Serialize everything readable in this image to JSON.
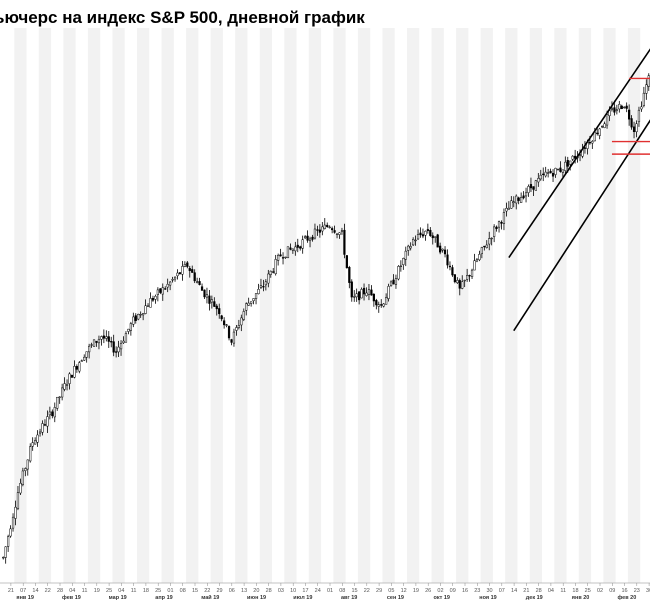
{
  "chart_data": {
    "type": "candlestick",
    "title": "ьючерс на индекс S&P 500, дневной график",
    "xlabel": "",
    "ylabel": "",
    "grid": true,
    "day_ticks": [
      "21",
      "07",
      "14",
      "22",
      "28",
      "04",
      "11",
      "19",
      "25",
      "04",
      "11",
      "18",
      "25",
      "01",
      "08",
      "15",
      "22",
      "29",
      "06",
      "13",
      "20",
      "28",
      "03",
      "10",
      "17",
      "24",
      "01",
      "08",
      "15",
      "22",
      "29",
      "05",
      "12",
      "19",
      "26",
      "02",
      "09",
      "16",
      "23",
      "30",
      "07",
      "14",
      "21",
      "28",
      "04",
      "11",
      "18",
      "25",
      "02",
      "09",
      "16",
      "23",
      "30",
      "06",
      "13",
      "20",
      "27",
      "03",
      "10",
      "17"
    ],
    "month_ticks": [
      "янв 19",
      "фев 19",
      "мар 19",
      "апр 19",
      "май 19",
      "июн 19",
      "июл 19",
      "авг 19",
      "сен 19",
      "окт 19",
      "ноя 19",
      "дек 19",
      "янв 20",
      "фев 20"
    ],
    "price_knots": [
      {
        "t": 0,
        "p": 2350
      },
      {
        "t": 6,
        "p": 2480
      },
      {
        "t": 12,
        "p": 2580
      },
      {
        "t": 20,
        "p": 2640
      },
      {
        "t": 26,
        "p": 2700
      },
      {
        "t": 33,
        "p": 2755
      },
      {
        "t": 40,
        "p": 2790
      },
      {
        "t": 46,
        "p": 2760
      },
      {
        "t": 53,
        "p": 2820
      },
      {
        "t": 60,
        "p": 2860
      },
      {
        "t": 67,
        "p": 2890
      },
      {
        "t": 75,
        "p": 2930
      },
      {
        "t": 81,
        "p": 2880
      },
      {
        "t": 88,
        "p": 2840
      },
      {
        "t": 93,
        "p": 2780
      },
      {
        "t": 99,
        "p": 2850
      },
      {
        "t": 106,
        "p": 2890
      },
      {
        "t": 113,
        "p": 2950
      },
      {
        "t": 119,
        "p": 2965
      },
      {
        "t": 126,
        "p": 2990
      },
      {
        "t": 133,
        "p": 3010
      },
      {
        "t": 138,
        "p": 2990
      },
      {
        "t": 142,
        "p": 2860
      },
      {
        "t": 148,
        "p": 2880
      },
      {
        "t": 154,
        "p": 2850
      },
      {
        "t": 160,
        "p": 2910
      },
      {
        "t": 167,
        "p": 2980
      },
      {
        "t": 173,
        "p": 3000
      },
      {
        "t": 180,
        "p": 2950
      },
      {
        "t": 186,
        "p": 2880
      },
      {
        "t": 193,
        "p": 2940
      },
      {
        "t": 200,
        "p": 3000
      },
      {
        "t": 207,
        "p": 3050
      },
      {
        "t": 214,
        "p": 3080
      },
      {
        "t": 221,
        "p": 3110
      },
      {
        "t": 227,
        "p": 3120
      },
      {
        "t": 234,
        "p": 3150
      },
      {
        "t": 241,
        "p": 3190
      },
      {
        "t": 248,
        "p": 3235
      },
      {
        "t": 253,
        "p": 3250
      },
      {
        "t": 257,
        "p": 3200
      },
      {
        "t": 261,
        "p": 3270
      },
      {
        "t": 263,
        "p": 3300
      }
    ],
    "ylim": [
      2300,
      3400
    ],
    "channel": {
      "upper": [
        {
          "t": 206,
          "p": 2945
        },
        {
          "t": 263,
          "p": 3365
        }
      ],
      "lower": [
        {
          "t": 208,
          "p": 2800
        },
        {
          "t": 263,
          "p": 3225
        }
      ]
    },
    "horizontal_levels": [
      {
        "t_start": 255,
        "p": 3300
      },
      {
        "t_start": 248,
        "p": 3175
      },
      {
        "t_start": 248,
        "p": 3150
      }
    ]
  },
  "colors": {
    "candle": "#000000",
    "channel": "#000000",
    "level": "#e03030",
    "stripe": "#f2f2f2",
    "axis": "#888888"
  }
}
